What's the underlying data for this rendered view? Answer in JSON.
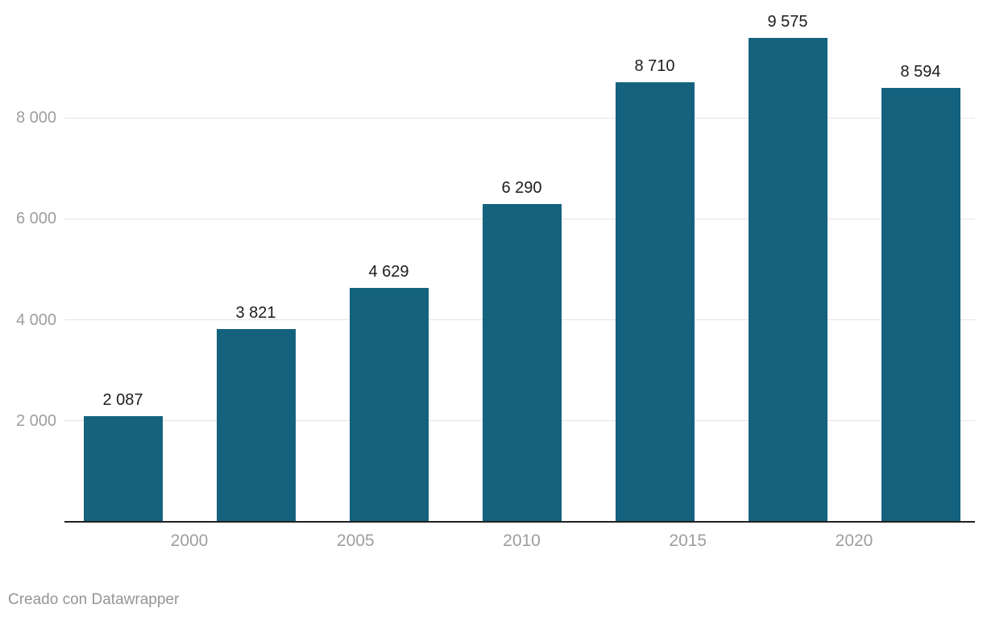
{
  "footer": {
    "credit": "Creado con Datawrapper"
  },
  "colors": {
    "bar": "#14627e",
    "grid": "#e4e4e4",
    "axis": "#212121",
    "tick_label": "#9e9e9e",
    "value_label": "#1d1d1d",
    "footer_text": "#959595"
  },
  "chart_data": {
    "type": "bar",
    "title": "",
    "xlabel": "",
    "ylabel": "",
    "x": [
      1998,
      2002,
      2006,
      2010,
      2014,
      2018,
      2022
    ],
    "values": [
      2087,
      3821,
      4629,
      6290,
      8710,
      9575,
      8594
    ],
    "value_labels": [
      "2 087",
      "3 821",
      "4 629",
      "6 290",
      "8 710",
      "9 575",
      "8 594"
    ],
    "x_axis": {
      "ticks": [
        2000,
        2005,
        2010,
        2015,
        2020
      ],
      "labels": [
        "2000",
        "2005",
        "2010",
        "2015",
        "2020"
      ]
    },
    "y_axis": {
      "ticks": [
        2000,
        4000,
        6000,
        8000
      ],
      "labels": [
        "2 000",
        "4 000",
        "6 000",
        "8 000"
      ],
      "range": [
        0,
        10330
      ]
    },
    "grid": "horizontal-only",
    "legend": "none",
    "bar_color": "#14627e"
  }
}
